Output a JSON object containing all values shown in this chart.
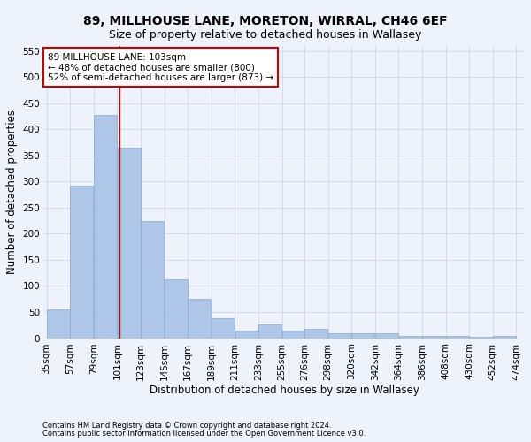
{
  "title": "89, MILLHOUSE LANE, MORETON, WIRRAL, CH46 6EF",
  "subtitle": "Size of property relative to detached houses in Wallasey",
  "xlabel": "Distribution of detached houses by size in Wallasey",
  "ylabel": "Number of detached properties",
  "footer_line1": "Contains HM Land Registry data © Crown copyright and database right 2024.",
  "footer_line2": "Contains public sector information licensed under the Open Government Licence v3.0.",
  "categories": [
    "35sqm",
    "57sqm",
    "79sqm",
    "101sqm",
    "123sqm",
    "145sqm",
    "167sqm",
    "189sqm",
    "211sqm",
    "233sqm",
    "255sqm",
    "276sqm",
    "298sqm",
    "320sqm",
    "342sqm",
    "364sqm",
    "386sqm",
    "408sqm",
    "430sqm",
    "452sqm",
    "474sqm"
  ],
  "values": [
    55,
    293,
    428,
    365,
    225,
    113,
    76,
    38,
    15,
    27,
    14,
    17,
    9,
    9,
    9,
    5,
    5,
    4,
    3,
    4
  ],
  "bar_color": "#aec6e8",
  "bar_edge_color": "#85a9d0",
  "background_color": "#eef2fb",
  "grid_color": "#ccd8ee",
  "annotation_box_text": "89 MILLHOUSE LANE: 103sqm\n← 48% of detached houses are smaller (800)\n52% of semi-detached houses are larger (873) →",
  "vline_color": "#cc0000",
  "ylim": [
    0,
    560
  ],
  "yticks": [
    0,
    50,
    100,
    150,
    200,
    250,
    300,
    350,
    400,
    450,
    500,
    550
  ],
  "annotation_box_color": "#ffffff",
  "annotation_box_edge": "#cc0000",
  "title_fontsize": 10,
  "subtitle_fontsize": 9,
  "axis_label_fontsize": 8.5,
  "tick_fontsize": 7.5,
  "footer_fontsize": 6,
  "annot_fontsize": 7.5
}
